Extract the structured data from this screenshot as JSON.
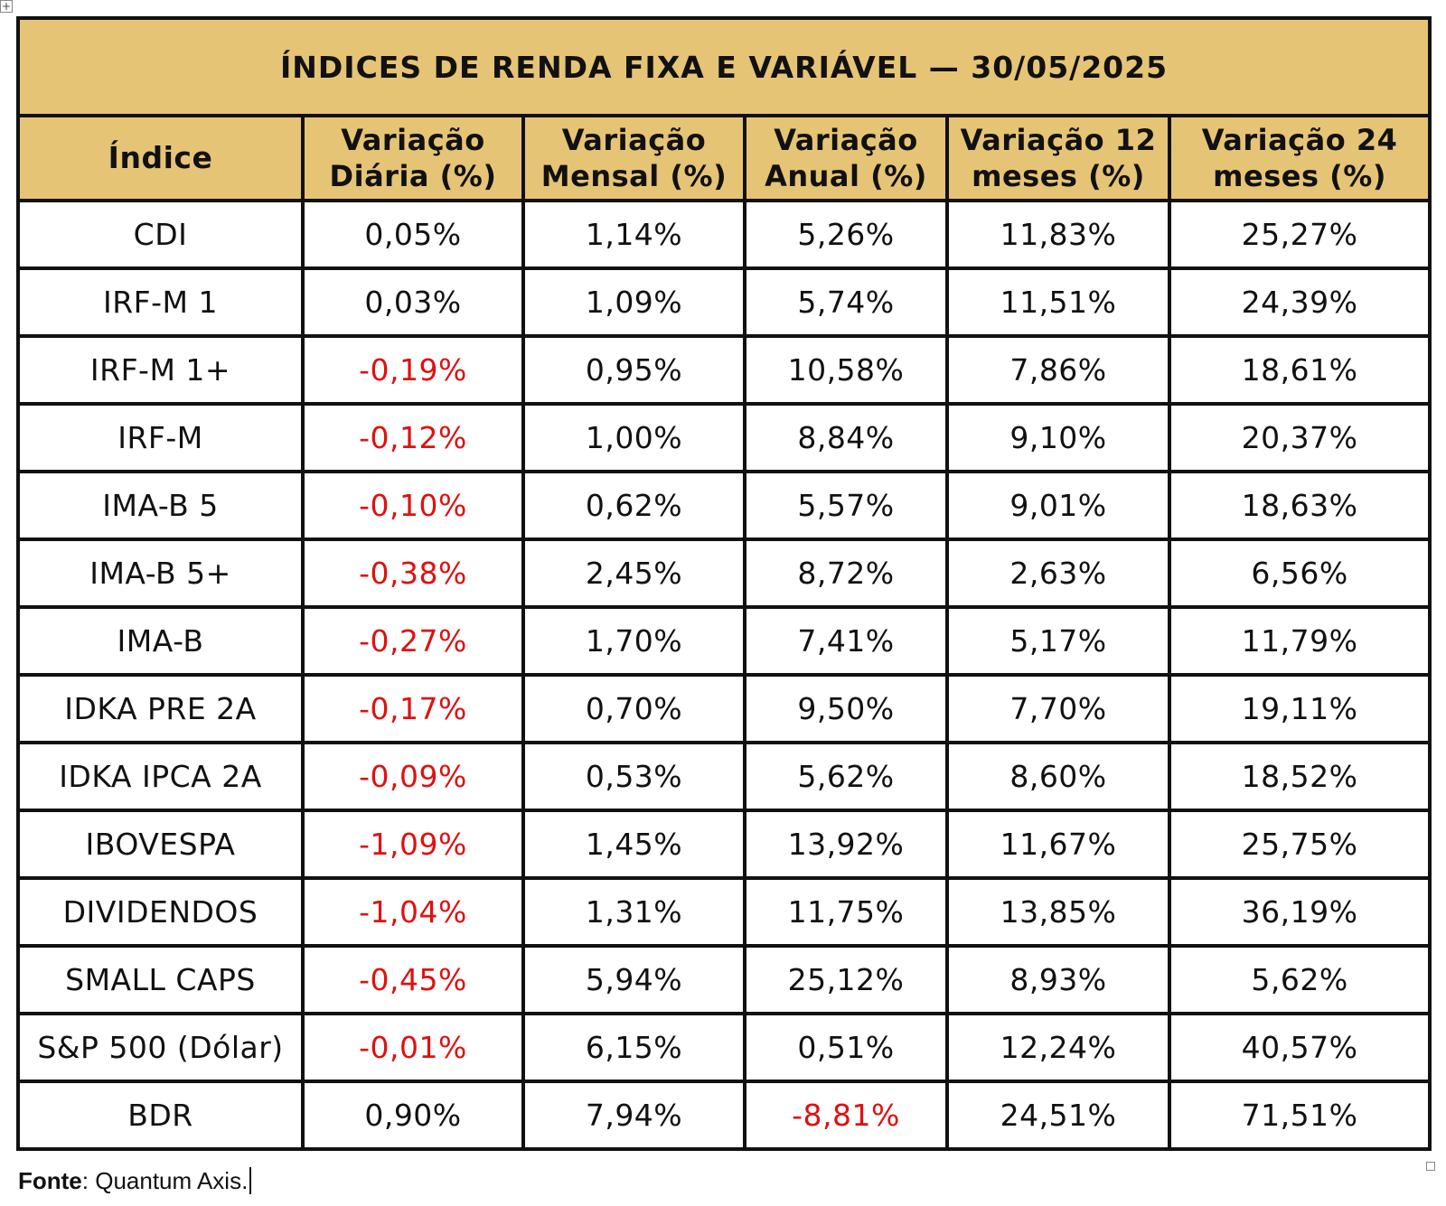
{
  "table": {
    "title": "ÍNDICES DE RENDA FIXA E VARIÁVEL — 30/05/2025",
    "headers": [
      [
        "Índice"
      ],
      [
        "Variação",
        "Diária (%)"
      ],
      [
        "Variação",
        "Mensal (%)"
      ],
      [
        "Variação",
        "Anual (%)"
      ],
      [
        "Variação 12",
        "meses (%)"
      ],
      [
        "Variação 24",
        "meses (%)"
      ]
    ],
    "rows": [
      [
        "CDI",
        "0,05%",
        "1,14%",
        "5,26%",
        "11,83%",
        "25,27%"
      ],
      [
        "IRF-M 1",
        "0,03%",
        "1,09%",
        "5,74%",
        "11,51%",
        "24,39%"
      ],
      [
        "IRF-M 1+",
        "-0,19%",
        "0,95%",
        "10,58%",
        "7,86%",
        "18,61%"
      ],
      [
        "IRF-M",
        "-0,12%",
        "1,00%",
        "8,84%",
        "9,10%",
        "20,37%"
      ],
      [
        "IMA-B 5",
        "-0,10%",
        "0,62%",
        "5,57%",
        "9,01%",
        "18,63%"
      ],
      [
        "IMA-B 5+",
        "-0,38%",
        "2,45%",
        "8,72%",
        "2,63%",
        "6,56%"
      ],
      [
        "IMA-B",
        "-0,27%",
        "1,70%",
        "7,41%",
        "5,17%",
        "11,79%"
      ],
      [
        "IDKA PRE 2A",
        "-0,17%",
        "0,70%",
        "9,50%",
        "7,70%",
        "19,11%"
      ],
      [
        "IDKA IPCA 2A",
        "-0,09%",
        "0,53%",
        "5,62%",
        "8,60%",
        "18,52%"
      ],
      [
        "IBOVESPA",
        "-1,09%",
        "1,45%",
        "13,92%",
        "11,67%",
        "25,75%"
      ],
      [
        "DIVIDENDOS",
        "-1,04%",
        "1,31%",
        "11,75%",
        "13,85%",
        "36,19%"
      ],
      [
        "SMALL CAPS",
        "-0,45%",
        "5,94%",
        "25,12%",
        "8,93%",
        "5,62%"
      ],
      [
        "S&P 500 (Dólar)",
        "-0,01%",
        "6,15%",
        "0,51%",
        "12,24%",
        "40,57%"
      ],
      [
        "BDR",
        "0,90%",
        "7,94%",
        "-8,81%",
        "24,51%",
        "71,51%"
      ]
    ]
  },
  "footer": {
    "label": "Fonte",
    "separator": ":",
    "source": " Quantum Axis."
  },
  "colors": {
    "header_bg": "#e6c476",
    "negative_text": "#e01010",
    "border": "#111111"
  },
  "icons": {
    "table_move_handle": "plus-move-icon",
    "table_resize_handle": "resize-handle-icon"
  }
}
